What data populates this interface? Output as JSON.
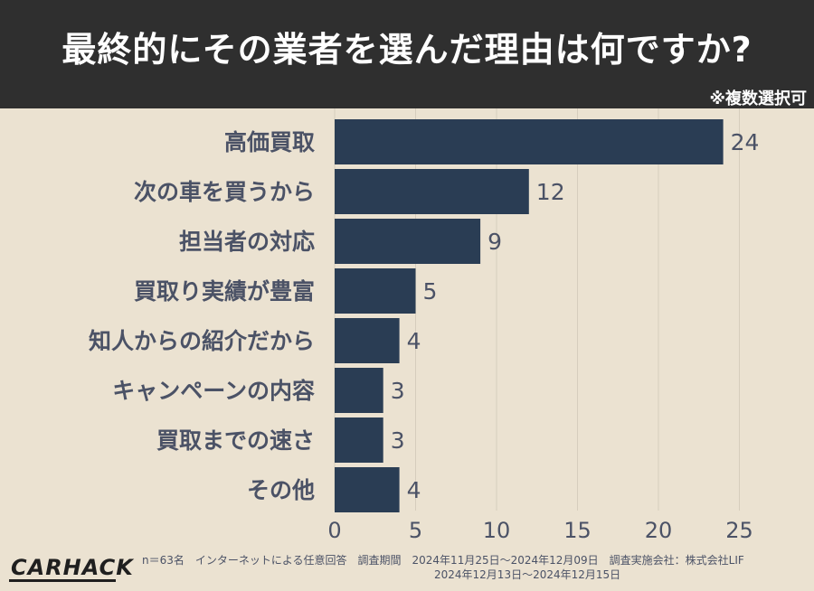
{
  "header": {
    "title": "最終的にその業者を選んだ理由は何ですか?",
    "note": "※複数選択可"
  },
  "colors": {
    "header_bg": "#2f2f2f",
    "background": "#ebe2d1",
    "bar": "#2a3d54",
    "label": "#4b5266",
    "grid": "#d6cdbd"
  },
  "chart_data": {
    "type": "bar",
    "orientation": "horizontal",
    "title": "最終的にその業者を選んだ理由は何ですか?",
    "categories": [
      "高価買取",
      "次の車を買うから",
      "担当者の対応",
      "買取り実績が豊富",
      "知人からの紹介だから",
      "キャンペーンの内容",
      "買取までの速さ",
      "その他"
    ],
    "values": [
      24,
      12,
      9,
      5,
      4,
      3,
      3,
      4
    ],
    "xlim": [
      0,
      25
    ],
    "xticks": [
      0,
      5,
      10,
      15,
      20,
      25
    ],
    "grid": true,
    "data_labels": true
  },
  "footer": {
    "line1": "n＝63名　インターネットによる任意回答　調査期間　2024年11月25日～2024年12月09日　調査実施会社：株式会社LIF",
    "line2": "2024年12月13日～2024年12月15日",
    "logo": "CARHACK"
  }
}
